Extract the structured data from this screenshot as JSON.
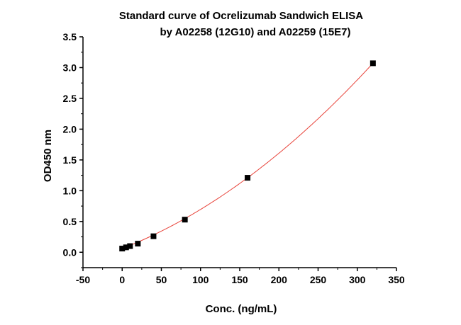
{
  "chart_data": {
    "type": "scatter",
    "title": "Standard curve of Ocrelizumab Sandwich ELISA",
    "subtitle": "by A02258 (12G10) and A02259 (15E7)",
    "xlabel": "Conc. (ng/mL)",
    "ylabel": "OD450 nm",
    "xlim": [
      -50,
      350
    ],
    "ylim": [
      -0.25,
      3.5
    ],
    "xticks": [
      "-50",
      "0",
      "50",
      "100",
      "150",
      "200",
      "250",
      "300",
      "350"
    ],
    "yticks": [
      "0.0",
      "0.5",
      "1.0",
      "1.5",
      "2.0",
      "2.5",
      "3.0",
      "3.5"
    ],
    "grid": false,
    "legend": "none",
    "series": [
      {
        "x": [
          0,
          5,
          10,
          20,
          40,
          80,
          160,
          320
        ],
        "y": [
          0.06,
          0.08,
          0.1,
          0.14,
          0.26,
          0.53,
          1.21,
          3.07
        ],
        "marker": "square",
        "color": "#000000"
      }
    ],
    "fit": {
      "type": "polynomial",
      "color": "#e8433a",
      "coefficients": [
        0.06,
        0.00497,
        1.387e-05
      ]
    }
  }
}
